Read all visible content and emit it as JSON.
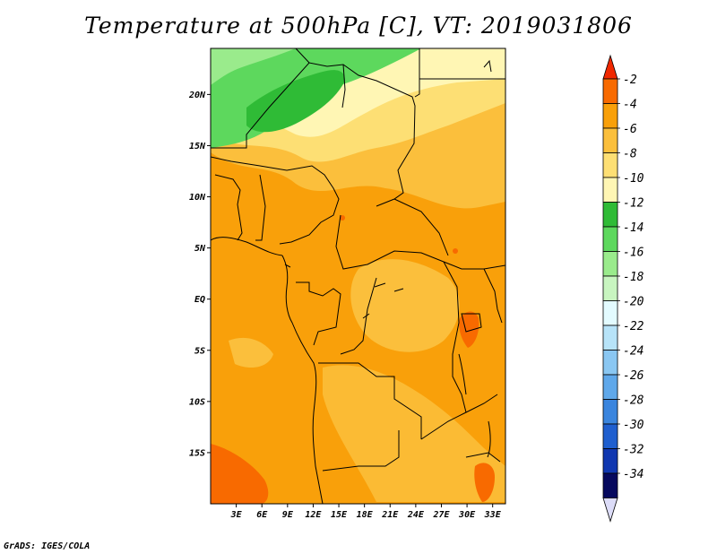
{
  "title": "Temperature at 500hPa [C], VT: 2019031806",
  "credit": "GrADS: IGES/COLA",
  "map": {
    "lon_range": [
      0,
      34.5
    ],
    "lat_range": [
      -20,
      24.5
    ],
    "lat_labels": [
      "20N",
      "15N",
      "10N",
      "5N",
      "EQ",
      "5S",
      "10S",
      "15S"
    ],
    "lat_values": [
      20,
      15,
      10,
      5,
      0,
      -5,
      -10,
      -15
    ],
    "lon_labels": [
      "3E",
      "6E",
      "9E",
      "12E",
      "15E",
      "18E",
      "21E",
      "24E",
      "27E",
      "30E",
      "33E"
    ],
    "lon_values": [
      3,
      6,
      9,
      12,
      15,
      18,
      21,
      24,
      27,
      30,
      33
    ]
  },
  "colorbar": {
    "labels": [
      "-2",
      "-4",
      "-6",
      "-8",
      "-10",
      "-12",
      "-14",
      "-16",
      "-18",
      "-20",
      "-22",
      "-24",
      "-26",
      "-28",
      "-30",
      "-32",
      "-34"
    ],
    "colors": [
      "#f02800",
      "#f86a00",
      "#f9a00a",
      "#fbbf3c",
      "#fddf74",
      "#fff6b4",
      "#2fbb36",
      "#5dd85d",
      "#9aeb8c",
      "#c8f5c0",
      "#e3fbff",
      "#b7e3f8",
      "#8ac7f2",
      "#5fa8ea",
      "#3a85de",
      "#1f5fcf",
      "#1037b0",
      "#06095e",
      "#dcdcf8"
    ]
  }
}
